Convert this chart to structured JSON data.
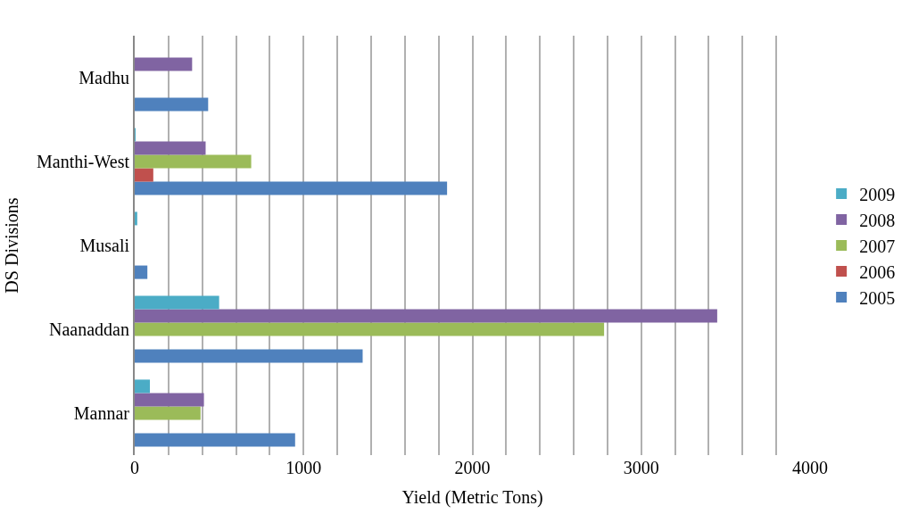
{
  "chart_data": {
    "type": "bar",
    "orientation": "horizontal",
    "xlabel": "Yield (Metric Tons)",
    "ylabel": "DS Divisions",
    "categories": [
      "Madhu",
      "Manthi-West",
      "Musali",
      "Naanaddan",
      "Mannar"
    ],
    "series": [
      {
        "name": "2005",
        "color": "#4f81bd",
        "values": [
          435,
          1850,
          75,
          1350,
          950
        ]
      },
      {
        "name": "2006",
        "color": "#c0504d",
        "values": [
          null,
          110,
          null,
          null,
          null
        ]
      },
      {
        "name": "2007",
        "color": "#9bbb59",
        "values": [
          null,
          690,
          null,
          2780,
          390
        ]
      },
      {
        "name": "2008",
        "color": "#8064a2",
        "values": [
          340,
          420,
          null,
          3450,
          410
        ]
      },
      {
        "name": "2009",
        "color": "#4bacc6",
        "values": [
          null,
          5,
          15,
          500,
          90
        ]
      }
    ],
    "xlim": [
      0,
      4000
    ],
    "xticks": [
      0,
      {
        "value": 200,
        "label": null
      },
      {
        "value": 400,
        "label": null
      },
      {
        "value": 600,
        "label": null
      },
      {
        "value": 800,
        "label": null
      },
      1000,
      {
        "value": 1200,
        "label": null
      },
      {
        "value": 1400,
        "label": null
      },
      {
        "value": 1600,
        "label": null
      },
      {
        "value": 1800,
        "label": null
      },
      2000,
      {
        "value": 2200,
        "label": null
      },
      {
        "value": 2400,
        "label": null
      },
      {
        "value": 2600,
        "label": null
      },
      {
        "value": 2800,
        "label": null
      },
      3000,
      {
        "value": 3200,
        "label": null
      },
      {
        "value": 3400,
        "label": null
      },
      {
        "value": 3600,
        "label": null
      },
      {
        "value": 3800,
        "label": null
      },
      4000
    ],
    "grid": "x",
    "legend": "right"
  }
}
